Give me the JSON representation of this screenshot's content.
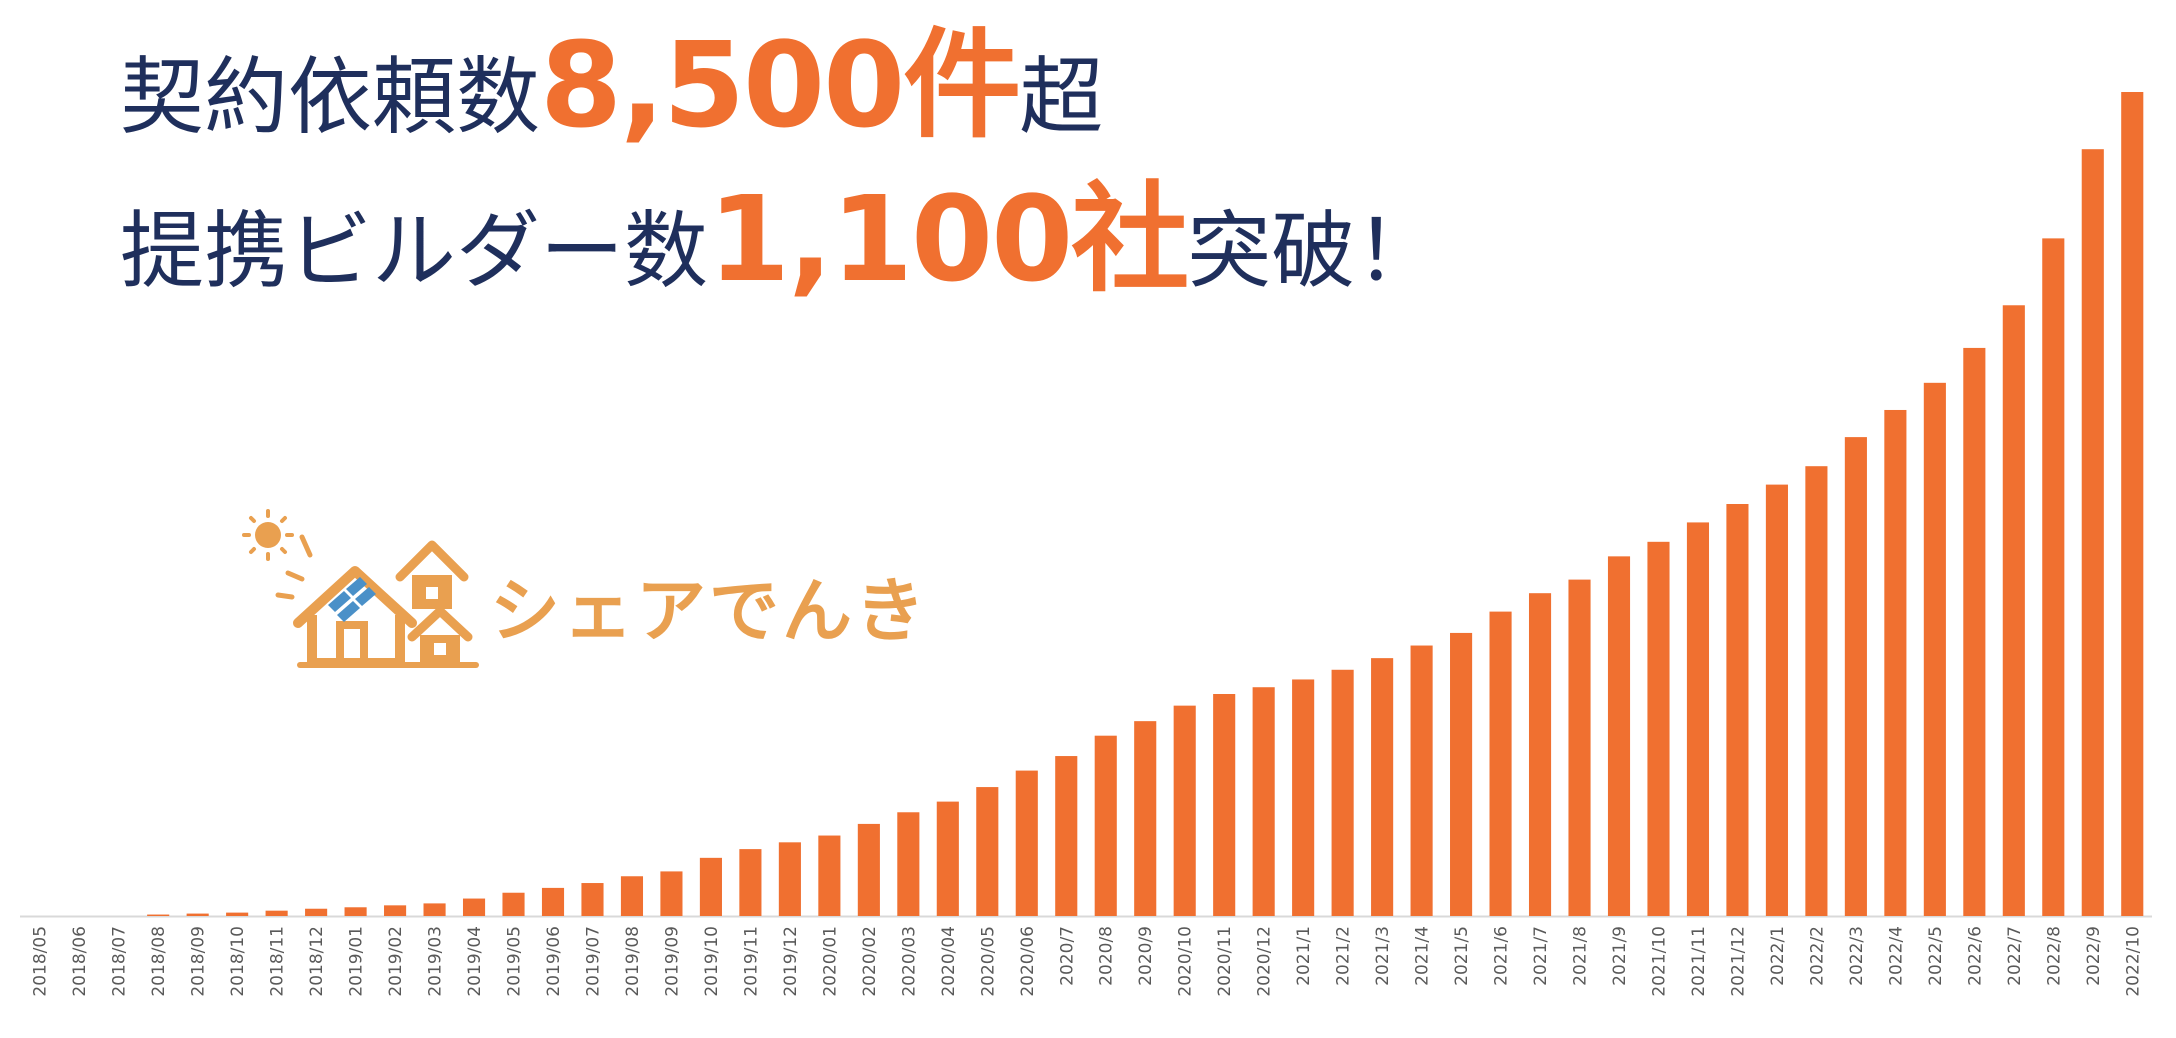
{
  "headline": {
    "line1": {
      "prefix": "契約依頼数",
      "highlight": "8,500件",
      "suffix": "超"
    },
    "line2": {
      "prefix": "提携ビルダー数",
      "highlight": "1,100社",
      "suffix": "突破！"
    }
  },
  "logo": {
    "text": "シェアでんき",
    "color": "#e9a050",
    "accent": "#4a90c8"
  },
  "colors": {
    "bar": "#f07030",
    "title": "#1f2f5c",
    "axis": "#d9d9d9",
    "tick": "#595959"
  },
  "chart_data": {
    "type": "bar",
    "title": "",
    "xlabel": "",
    "ylabel": "",
    "grid": false,
    "legend": "none",
    "ylim": [
      0,
      8500
    ],
    "categories": [
      "2018/05",
      "2018/06",
      "2018/07",
      "2018/08",
      "2018/09",
      "2018/10",
      "2018/11",
      "2018/12",
      "2019/01",
      "2019/02",
      "2019/03",
      "2019/04",
      "2019/05",
      "2019/06",
      "2019/07",
      "2019/08",
      "2019/09",
      "2019/10",
      "2019/11",
      "2019/12",
      "2020/01",
      "2020/02",
      "2020/03",
      "2020/04",
      "2020/05",
      "2020/06",
      "2020/7",
      "2020/8",
      "2020/9",
      "2020/10",
      "2020/11",
      "2020/12",
      "2021/1",
      "2021/2",
      "2021/3",
      "2021/4",
      "2021/5",
      "2021/6",
      "2021/7",
      "2021/8",
      "2021/9",
      "2021/10",
      "2021/11",
      "2021/12",
      "2022/1",
      "2022/2",
      "2022/3",
      "2022/4",
      "2022/5",
      "2022/6",
      "2022/7",
      "2022/8",
      "2022/9",
      "2022/10"
    ],
    "values": [
      0,
      0,
      0,
      15,
      25,
      35,
      55,
      75,
      90,
      110,
      130,
      180,
      240,
      290,
      340,
      410,
      460,
      600,
      690,
      760,
      830,
      950,
      1070,
      1180,
      1330,
      1500,
      1650,
      1860,
      2010,
      2170,
      2290,
      2360,
      2440,
      2540,
      2660,
      2790,
      2920,
      3140,
      3330,
      3470,
      3710,
      3860,
      4060,
      4250,
      4450,
      4640,
      4940,
      5220,
      5500,
      5860,
      6300,
      6990,
      7910,
      8500
    ]
  }
}
